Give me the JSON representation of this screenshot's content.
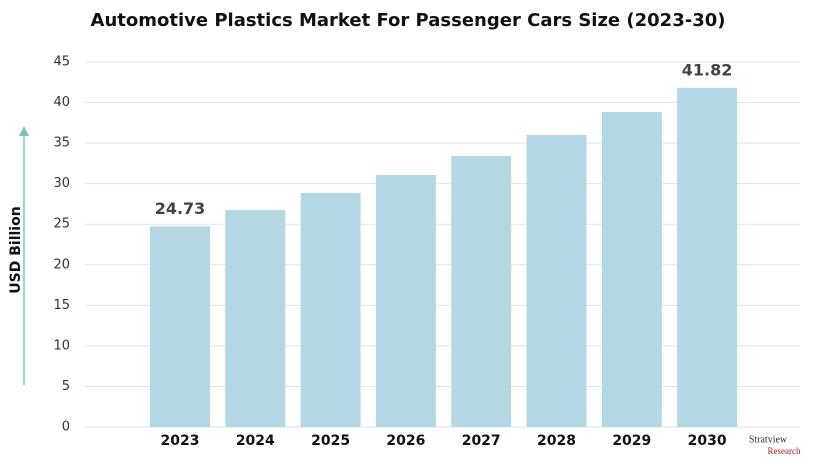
{
  "chart_data": {
    "type": "bar",
    "title": "Automotive Plastics Market For Passenger Cars Size (2023-30)",
    "y_label": "USD Billion",
    "categories": [
      "2023",
      "2024",
      "2025",
      "2026",
      "2027",
      "2028",
      "2029",
      "2030"
    ],
    "values": [
      24.73,
      26.75,
      28.85,
      31.07,
      33.41,
      36.0,
      38.84,
      41.82
    ],
    "value_labels": [
      "24.73",
      null,
      null,
      null,
      null,
      null,
      null,
      "41.82"
    ],
    "color": "#b4d7e4",
    "ylim": [
      0,
      45
    ],
    "yticks": [
      0,
      5,
      10,
      15,
      20,
      25,
      30,
      35,
      40,
      45
    ],
    "grid": true
  },
  "logo": {
    "name": "Stratview",
    "sub": "Research"
  }
}
